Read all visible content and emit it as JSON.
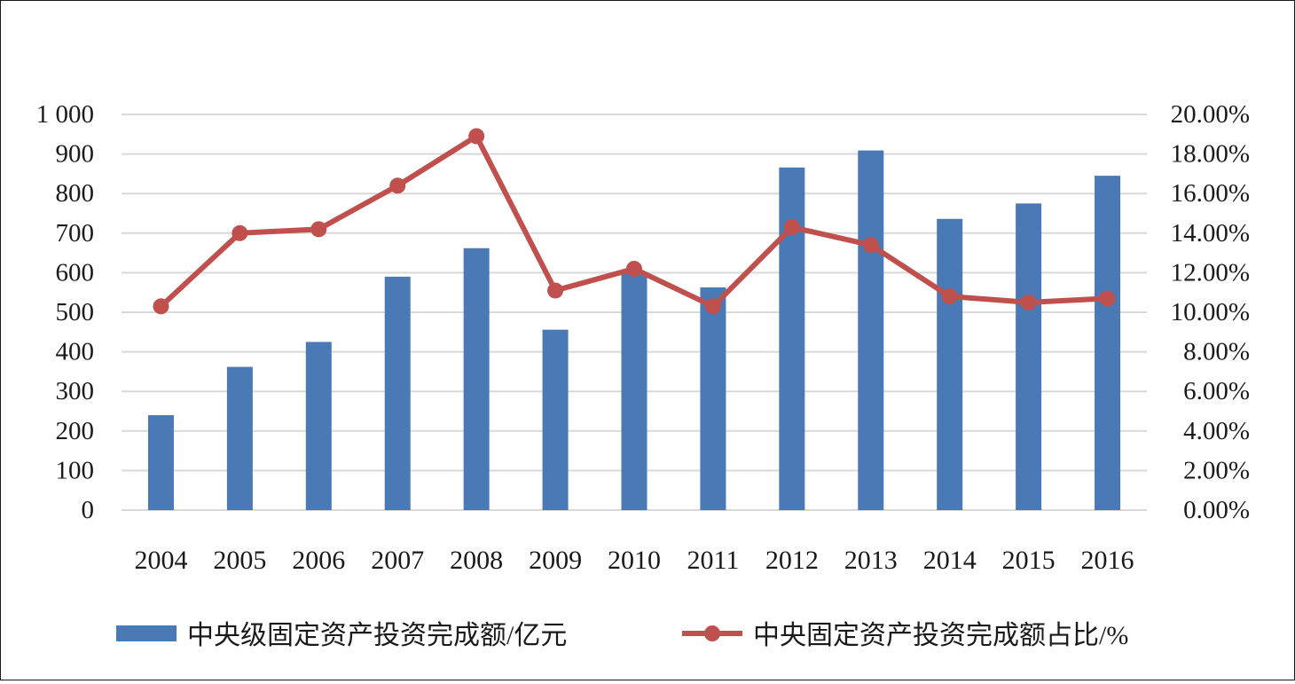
{
  "chart_data": {
    "type": "bar",
    "categories": [
      "2004",
      "2005",
      "2006",
      "2007",
      "2008",
      "2009",
      "2010",
      "2011",
      "2012",
      "2013",
      "2014",
      "2015",
      "2016"
    ],
    "series": [
      {
        "name": "中央级固定资产投资完成额/亿元",
        "type": "bar",
        "axis": "left",
        "color": "#4a7ab5",
        "values": [
          240,
          362,
          425,
          590,
          662,
          456,
          600,
          563,
          866,
          909,
          736,
          775,
          845
        ]
      },
      {
        "name": "中央固定资产投资完成额占比/%",
        "type": "line",
        "axis": "right",
        "color": "#c0504d",
        "values": [
          10.3,
          14.0,
          14.2,
          16.4,
          18.9,
          11.1,
          12.2,
          10.3,
          14.3,
          13.4,
          10.8,
          10.5,
          10.7
        ]
      }
    ],
    "y_left": {
      "ylim": [
        0,
        1000
      ],
      "ticks": [
        0,
        100,
        200,
        300,
        400,
        500,
        600,
        700,
        800,
        900,
        1000
      ],
      "tick_labels": [
        "0",
        "100",
        "200",
        "300",
        "400",
        "500",
        "600",
        "700",
        "800",
        "900",
        "1 000"
      ]
    },
    "y_right": {
      "ylim": [
        0,
        20
      ],
      "ticks": [
        0,
        2,
        4,
        6,
        8,
        10,
        12,
        14,
        16,
        18,
        20
      ],
      "tick_labels": [
        "0.00%",
        "2.00%",
        "4.00%",
        "6.00%",
        "8.00%",
        "10.00%",
        "12.00%",
        "14.00%",
        "16.00%",
        "18.00%",
        "20.00%"
      ]
    },
    "grid": true,
    "legend": "bottom"
  }
}
